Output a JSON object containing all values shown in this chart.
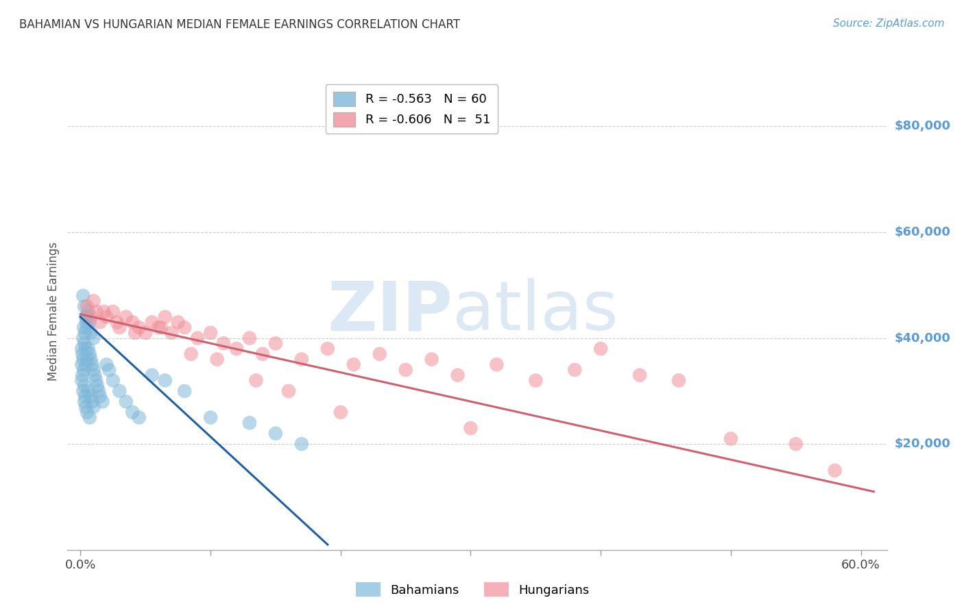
{
  "title": "BAHAMIAN VS HUNGARIAN MEDIAN FEMALE EARNINGS CORRELATION CHART",
  "source": "Source: ZipAtlas.com",
  "xlabel_ticks": [
    "0.0%",
    "",
    "",
    "",
    "",
    "",
    "60.0%"
  ],
  "xlabel_vals": [
    0.0,
    10.0,
    20.0,
    30.0,
    40.0,
    50.0,
    60.0
  ],
  "ylabel_vals": [
    20000,
    40000,
    60000,
    80000
  ],
  "ylabel_right_labels": [
    "$20,000",
    "$40,000",
    "$60,000",
    "$80,000"
  ],
  "ylim": [
    0,
    90000
  ],
  "xlim": [
    -1.0,
    62.0
  ],
  "bahamians_x": [
    0.1,
    0.1,
    0.1,
    0.15,
    0.15,
    0.2,
    0.2,
    0.2,
    0.25,
    0.25,
    0.3,
    0.3,
    0.3,
    0.35,
    0.35,
    0.4,
    0.4,
    0.45,
    0.45,
    0.5,
    0.5,
    0.5,
    0.6,
    0.6,
    0.7,
    0.7,
    0.8,
    0.8,
    0.9,
    0.9,
    1.0,
    1.0,
    1.1,
    1.2,
    1.3,
    1.4,
    1.5,
    1.7,
    2.0,
    2.2,
    2.5,
    3.0,
    3.5,
    4.0,
    4.5,
    5.5,
    6.5,
    8.0,
    10.0,
    13.0,
    15.0,
    17.0,
    0.2,
    0.3,
    0.4,
    0.5,
    0.6,
    0.7,
    0.8,
    1.0
  ],
  "bahamians_y": [
    38000,
    35000,
    32000,
    37000,
    33000,
    40000,
    36000,
    30000,
    42000,
    34000,
    39000,
    31000,
    28000,
    41000,
    29000,
    38000,
    27000,
    43000,
    35000,
    44000,
    36000,
    26000,
    38000,
    30000,
    37000,
    25000,
    36000,
    29000,
    35000,
    28000,
    34000,
    27000,
    33000,
    32000,
    31000,
    30000,
    29000,
    28000,
    35000,
    34000,
    32000,
    30000,
    28000,
    26000,
    25000,
    33000,
    32000,
    30000,
    25000,
    24000,
    22000,
    20000,
    48000,
    46000,
    44000,
    42000,
    45000,
    43000,
    41000,
    40000
  ],
  "hungarians_x": [
    0.5,
    0.8,
    1.0,
    1.2,
    1.5,
    2.0,
    2.5,
    3.0,
    3.5,
    4.0,
    4.5,
    5.0,
    5.5,
    6.0,
    6.5,
    7.0,
    7.5,
    8.0,
    9.0,
    10.0,
    11.0,
    12.0,
    13.0,
    14.0,
    15.0,
    17.0,
    19.0,
    21.0,
    23.0,
    25.0,
    27.0,
    29.0,
    32.0,
    35.0,
    38.0,
    40.0,
    43.0,
    46.0,
    50.0,
    55.0,
    58.0,
    1.8,
    2.8,
    4.2,
    6.2,
    8.5,
    10.5,
    13.5,
    16.0,
    20.0,
    30.0
  ],
  "hungarians_y": [
    46000,
    44000,
    47000,
    45000,
    43000,
    44000,
    45000,
    42000,
    44000,
    43000,
    42000,
    41000,
    43000,
    42000,
    44000,
    41000,
    43000,
    42000,
    40000,
    41000,
    39000,
    38000,
    40000,
    37000,
    39000,
    36000,
    38000,
    35000,
    37000,
    34000,
    36000,
    33000,
    35000,
    32000,
    34000,
    38000,
    33000,
    32000,
    21000,
    20000,
    15000,
    45000,
    43000,
    41000,
    42000,
    37000,
    36000,
    32000,
    30000,
    26000,
    23000
  ],
  "blue_line_x": [
    0.0,
    19.0
  ],
  "blue_line_y": [
    44000,
    1000
  ],
  "pink_line_x": [
    0.0,
    61.0
  ],
  "pink_line_y": [
    44500,
    11000
  ],
  "bahamian_color": "#7FB8D8",
  "hungarian_color": "#F0909A",
  "blue_line_color": "#2060A0",
  "pink_line_color": "#D06070",
  "grid_color": "#CCCCCC",
  "title_color": "#333333",
  "yaxis_label_color": "#5B9BD5",
  "background_color": "#FFFFFF",
  "legend_blue_label": "R = -0.563   N = 60",
  "legend_pink_label": "R = -0.606   N =  51",
  "bottom_legend_bah": "Bahamians",
  "bottom_legend_hun": "Hungarians"
}
